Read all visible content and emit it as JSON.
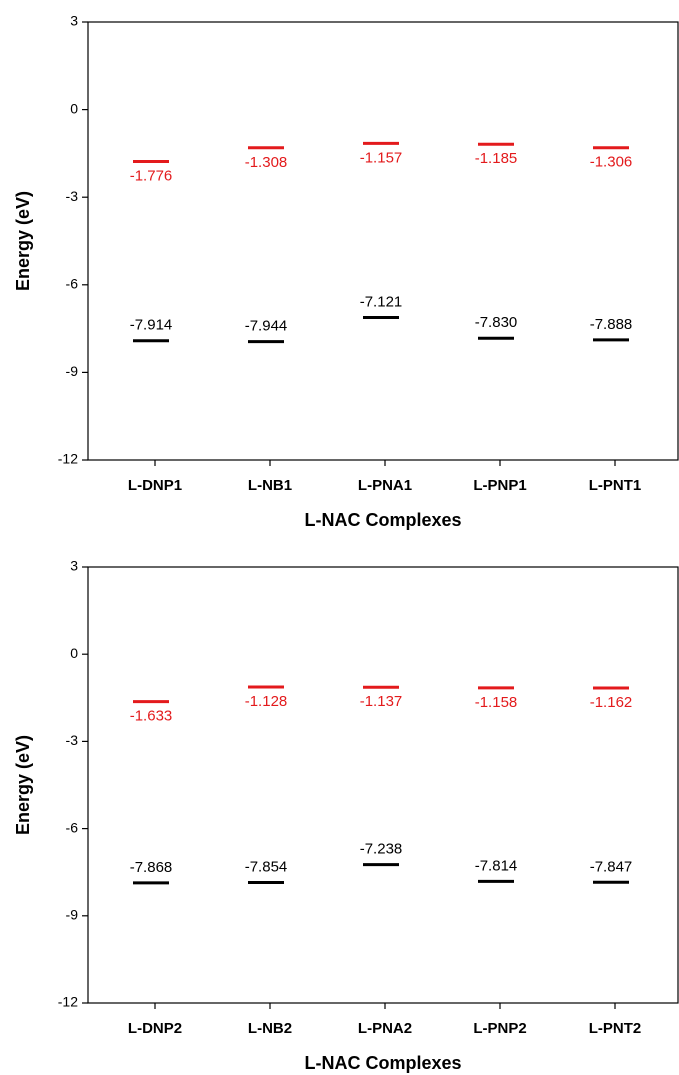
{
  "chart_data": [
    {
      "type": "level",
      "ylabel": "Energy (eV)",
      "xlabel": "L-NAC Complexes",
      "categories": [
        "L-DNP1",
        "L-NB1",
        "L-PNA1",
        "L-PNP1",
        "L-PNT1"
      ],
      "ylim": [
        -12,
        3
      ],
      "yticks": [
        -12,
        -9,
        -6,
        -3,
        0,
        3
      ],
      "series": [
        {
          "color": "#e31a1c",
          "values": [
            -1.776,
            -1.308,
            -1.157,
            -1.185,
            -1.306
          ]
        },
        {
          "color": "#000000",
          "values": [
            -7.914,
            -7.944,
            -7.121,
            -7.83,
            -7.888
          ],
          "value_labels": [
            "-7.914",
            "-7.944",
            "-7.121",
            "-7.830",
            "-7.888"
          ]
        }
      ]
    },
    {
      "type": "level",
      "ylabel": "Energy (eV)",
      "xlabel": "L-NAC Complexes",
      "categories": [
        "L-DNP2",
        "L-NB2",
        "L-PNA2",
        "L-PNP2",
        "L-PNT2"
      ],
      "ylim": [
        -12,
        3
      ],
      "yticks": [
        -12,
        -9,
        -6,
        -3,
        0,
        3
      ],
      "series": [
        {
          "color": "#e31a1c",
          "values": [
            -1.633,
            -1.128,
            -1.137,
            -1.158,
            -1.162
          ]
        },
        {
          "color": "#000000",
          "values": [
            -7.868,
            -7.854,
            -7.238,
            -7.814,
            -7.847
          ]
        }
      ]
    }
  ]
}
